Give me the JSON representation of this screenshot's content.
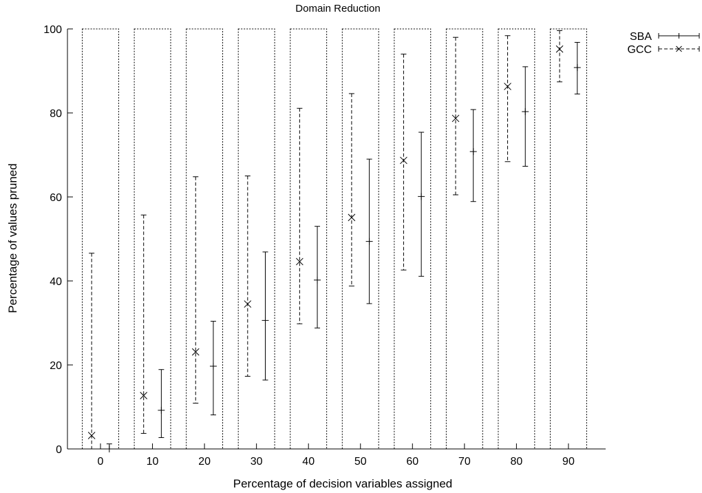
{
  "chart_data": {
    "type": "errorbar",
    "title": "Domain Reduction",
    "xlabel": "Percentage of decision variables assigned",
    "ylabel": "Percentage of values pruned",
    "x_ticks": [
      "0",
      "10",
      "20",
      "30",
      "40",
      "50",
      "60",
      "70",
      "80",
      "90"
    ],
    "y_ticks": [
      "0",
      "20",
      "40",
      "60",
      "80",
      "100"
    ],
    "ylim": [
      0,
      100
    ],
    "grid": false,
    "legend_position": "top-right",
    "background_boxes": {
      "style": "dotted",
      "y_top": 100,
      "x_centers": [
        0,
        10,
        20,
        30,
        40,
        50,
        60,
        70,
        80,
        90
      ],
      "half_width": 3.5
    },
    "series": [
      {
        "name": "SBA",
        "style": "solid",
        "marker": "plus",
        "x": [
          0,
          10,
          20,
          30,
          40,
          50,
          60,
          70,
          80,
          90
        ],
        "y": [
          0,
          9.2,
          19.7,
          30.6,
          40.2,
          49.4,
          60.1,
          70.8,
          80.3,
          90.8
        ],
        "ylow": [
          0,
          2.7,
          8.1,
          16.4,
          28.8,
          34.6,
          41.1,
          58.9,
          67.3,
          84.5
        ],
        "yhigh": [
          1.2,
          18.9,
          30.4,
          46.9,
          53.0,
          69.0,
          75.4,
          80.8,
          91.0,
          96.8
        ]
      },
      {
        "name": "GCC",
        "style": "dashed",
        "marker": "cross",
        "x": [
          0,
          10,
          20,
          30,
          40,
          50,
          60,
          70,
          80,
          90
        ],
        "y": [
          3.2,
          12.7,
          23.1,
          34.5,
          44.6,
          55.1,
          68.7,
          78.7,
          86.3,
          95.2
        ],
        "ylow": [
          0,
          3.7,
          10.9,
          17.3,
          29.8,
          38.8,
          42.6,
          60.5,
          68.4,
          87.4
        ],
        "yhigh": [
          46.6,
          55.7,
          64.8,
          65.0,
          81.1,
          84.6,
          94.0,
          98.0,
          98.4,
          99.6
        ]
      }
    ]
  }
}
